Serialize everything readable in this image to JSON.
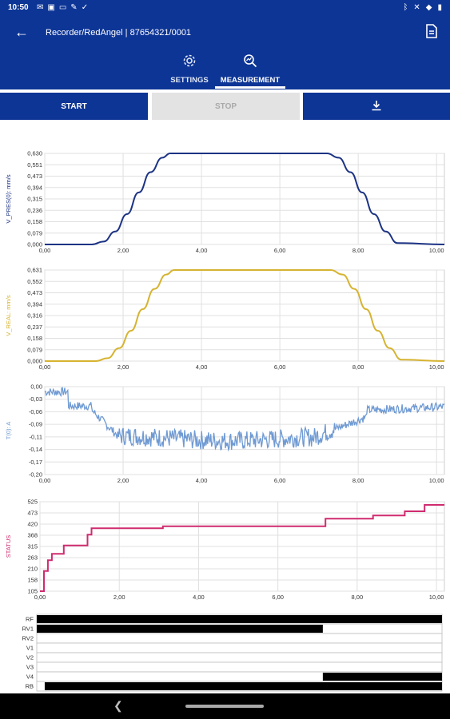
{
  "status_bar": {
    "time": "10:50",
    "left_icons": [
      "mail-icon",
      "gallery-icon",
      "tv-icon",
      "brush-icon",
      "check-icon"
    ],
    "right_icons": [
      "bluetooth-icon",
      "mute-icon",
      "wifi-icon",
      "battery-icon"
    ]
  },
  "app_bar": {
    "title": "Recorder/RedAngel | 87654321/0001"
  },
  "tabs": [
    {
      "label": "SETTINGS",
      "icon": "gear-icon"
    },
    {
      "label": "MEASUREMENT",
      "icon": "search-chart-icon",
      "selected": true
    }
  ],
  "actions": {
    "start": "START",
    "stop": "STOP",
    "stop_enabled": false,
    "download_icon": "download-icon"
  },
  "colors": {
    "primary": "#0d3596",
    "vpreset": "#1c3384",
    "vreal": "#d6b331",
    "t": "#6f9ad3",
    "status": "#cf2b6f",
    "grid": "#e0e0e0"
  },
  "chart_data": [
    {
      "type": "line",
      "ylabel": "V_PRES(0): mm/s",
      "color": "#1c3384",
      "x_ticks": [
        "0,00",
        "2,00",
        "4,00",
        "6,00",
        "8,00",
        "10,00"
      ],
      "y_ticks": [
        "0,630",
        "0,551",
        "0,473",
        "0,394",
        "0,315",
        "0,236",
        "0,158",
        "0,079",
        "0,000"
      ],
      "xlim": [
        0,
        10.2
      ],
      "ylim": [
        0,
        0.63
      ],
      "x": [
        0,
        1.2,
        1.5,
        1.8,
        2.1,
        2.4,
        2.7,
        3.0,
        3.2,
        7.2,
        7.5,
        7.8,
        8.1,
        8.4,
        8.7,
        9.0,
        10.2
      ],
      "y": [
        0,
        0,
        0.02,
        0.09,
        0.21,
        0.36,
        0.5,
        0.6,
        0.63,
        0.63,
        0.6,
        0.5,
        0.36,
        0.21,
        0.09,
        0.01,
        0
      ]
    },
    {
      "type": "line",
      "ylabel": "V_REAL: mm/s",
      "color": "#d6b331",
      "x_ticks": [
        "0,00",
        "2,00",
        "4,00",
        "6,00",
        "8,00",
        "10,00"
      ],
      "y_ticks": [
        "0,631",
        "0,552",
        "0,473",
        "0,394",
        "0,316",
        "0,237",
        "0,158",
        "0,079",
        "0,000"
      ],
      "xlim": [
        0,
        10.2
      ],
      "ylim": [
        0,
        0.631
      ],
      "x": [
        0,
        1.3,
        1.6,
        1.9,
        2.2,
        2.5,
        2.8,
        3.1,
        3.3,
        7.3,
        7.6,
        7.9,
        8.2,
        8.5,
        8.8,
        9.1,
        10.2
      ],
      "y": [
        0,
        0,
        0.02,
        0.09,
        0.21,
        0.36,
        0.5,
        0.6,
        0.631,
        0.631,
        0.6,
        0.5,
        0.36,
        0.21,
        0.09,
        0.01,
        0
      ]
    },
    {
      "type": "line",
      "ylabel": "T(0): A",
      "color": "#6f9ad3",
      "x_ticks": [
        "0,00",
        "2,00",
        "4,00",
        "6,00",
        "8,00",
        "10,00"
      ],
      "y_ticks": [
        "0,00",
        "-0,03",
        "-0,06",
        "-0,09",
        "-0,11",
        "-0,14",
        "-0,17",
        "-0,20"
      ],
      "xlim": [
        0,
        10.2
      ],
      "ylim": [
        -0.205,
        0.0
      ]
    },
    {
      "type": "line",
      "ylabel": "STATUS",
      "color": "#cf2b6f",
      "x_ticks": [
        "0,00",
        "2,00",
        "4,00",
        "6,00",
        "8,00",
        "10,00"
      ],
      "y_ticks": [
        "525",
        "473",
        "420",
        "368",
        "315",
        "263",
        "210",
        "158",
        "105"
      ],
      "xlim": [
        0,
        10.2
      ],
      "ylim": [
        105,
        525
      ],
      "x": [
        0,
        0.1,
        0.1,
        0.2,
        0.2,
        0.3,
        0.3,
        0.6,
        0.6,
        1.2,
        1.2,
        1.3,
        1.3,
        3.1,
        3.1,
        7.2,
        7.2,
        8.4,
        8.4,
        9.2,
        9.2,
        9.7,
        9.7,
        10.2
      ],
      "y": [
        105,
        105,
        200,
        200,
        250,
        250,
        280,
        280,
        320,
        320,
        370,
        370,
        400,
        400,
        410,
        410,
        445,
        445,
        460,
        460,
        480,
        480,
        510,
        510
      ]
    },
    {
      "type": "timeline",
      "tracks": [
        {
          "name": "RF",
          "high": [
            [
              0,
              10.2
            ]
          ]
        },
        {
          "name": "RV1",
          "high": [
            [
              0,
              7.2
            ]
          ]
        },
        {
          "name": "RV2",
          "high": []
        },
        {
          "name": "V1",
          "high": []
        },
        {
          "name": "V2",
          "high": []
        },
        {
          "name": "V3",
          "high": []
        },
        {
          "name": "V4",
          "high": [
            [
              7.2,
              10.2
            ]
          ]
        },
        {
          "name": "RB",
          "high": [
            [
              0.2,
              10.2
            ]
          ]
        }
      ]
    }
  ]
}
